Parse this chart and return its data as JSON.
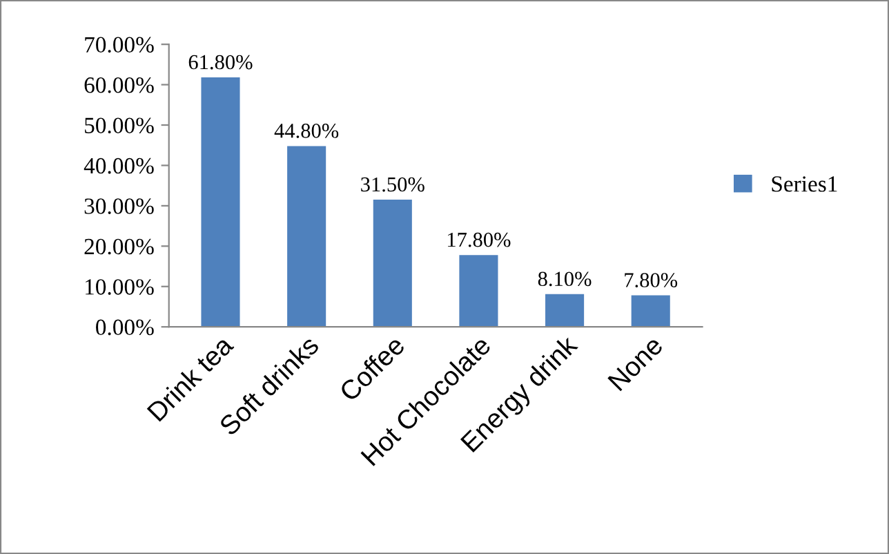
{
  "chart_data": {
    "type": "bar",
    "categories": [
      "Drink tea",
      "Soft drinks",
      "Coffee",
      "Hot Chocolate",
      "Energy drink",
      "None"
    ],
    "series": [
      {
        "name": "Series1",
        "color": "#4f81bd",
        "values": [
          61.8,
          44.8,
          31.5,
          17.8,
          8.1,
          7.8
        ],
        "value_labels": [
          "61.80%",
          "44.80%",
          "31.50%",
          "17.80%",
          "8.10%",
          "7.80%"
        ]
      }
    ],
    "ylim": [
      0,
      70
    ],
    "yticks": [
      {
        "value": 0,
        "label": "0.00%"
      },
      {
        "value": 10,
        "label": "10.00%"
      },
      {
        "value": 20,
        "label": "20.00%"
      },
      {
        "value": 30,
        "label": "30.00%"
      },
      {
        "value": 40,
        "label": "40.00%"
      },
      {
        "value": 50,
        "label": "50.00%"
      },
      {
        "value": 60,
        "label": "60.00%"
      },
      {
        "value": 70,
        "label": "70.00%"
      }
    ],
    "grid": false,
    "legend": "right"
  }
}
